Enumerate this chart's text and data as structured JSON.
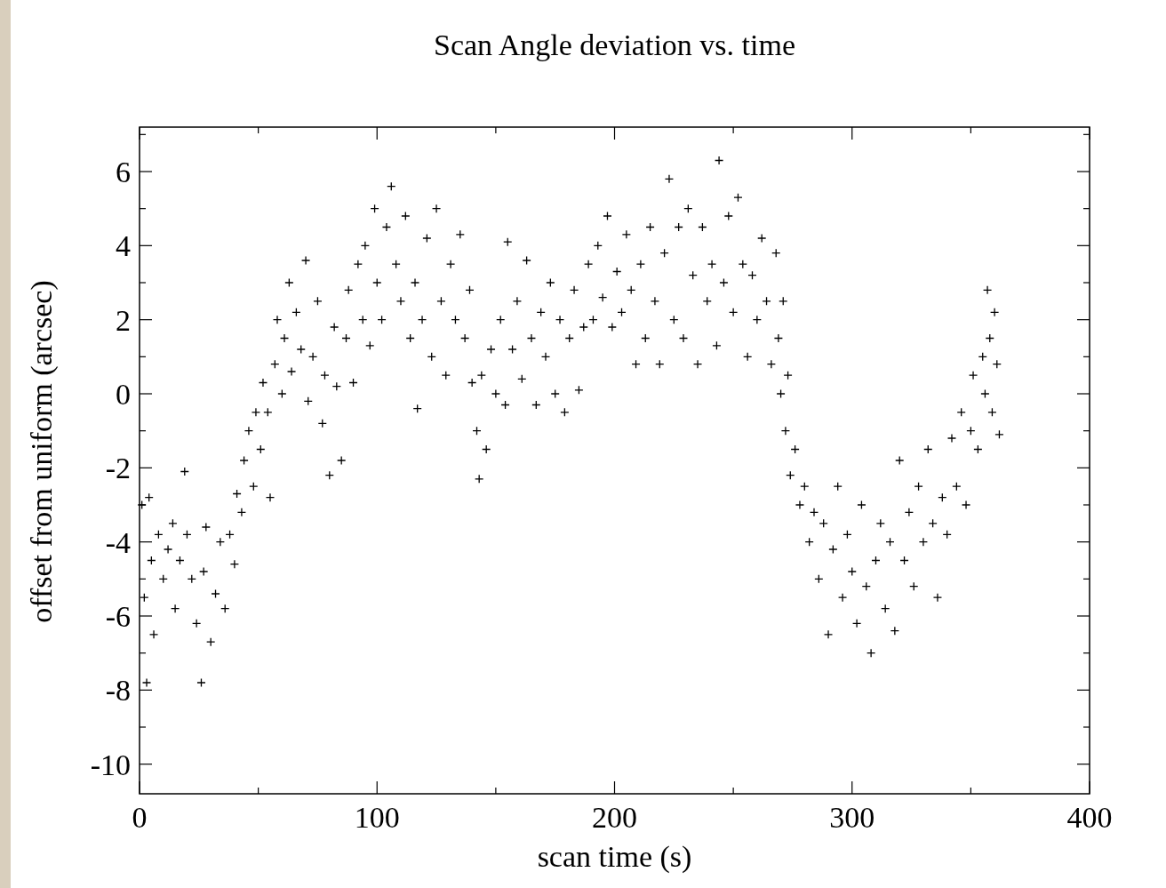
{
  "chart_data": {
    "type": "scatter",
    "title": "Scan Angle deviation vs. time",
    "xlabel": "scan time (s)",
    "ylabel": "offset from uniform (arcsec)",
    "marker": "cross",
    "grid": false,
    "xlim": [
      0,
      400
    ],
    "ylim": [
      -10.8,
      7.2
    ],
    "xticks": [
      0,
      {
        "value": 50,
        "label": null
      },
      100,
      {
        "value": 150,
        "label": null
      },
      200,
      {
        "value": 250,
        "label": null
      },
      300,
      {
        "value": 350,
        "label": null
      },
      400
    ],
    "yticks": [
      {
        "value": -10,
        "label": "-10"
      },
      {
        "value": -9,
        "label": null
      },
      {
        "value": -8,
        "label": "-8"
      },
      {
        "value": -7,
        "label": null
      },
      {
        "value": -6,
        "label": "-6"
      },
      {
        "value": -5,
        "label": null
      },
      {
        "value": -4,
        "label": "-4"
      },
      {
        "value": -3,
        "label": null
      },
      {
        "value": -2,
        "label": "-2"
      },
      {
        "value": -1,
        "label": null
      },
      0,
      {
        "value": 1,
        "label": null
      },
      2,
      {
        "value": 3,
        "label": null
      },
      4,
      {
        "value": 5,
        "label": null
      },
      6,
      {
        "value": 7,
        "label": null
      }
    ],
    "series": [
      {
        "color": "#000000",
        "x": [
          1,
          2,
          3,
          4,
          5,
          6,
          8,
          10,
          12,
          14,
          15,
          17,
          19,
          20,
          22,
          24,
          26,
          27,
          28,
          30,
          32,
          34,
          36,
          38,
          40,
          41,
          43,
          44,
          46,
          48,
          49,
          51,
          52,
          54,
          55,
          57,
          58,
          60,
          61,
          63,
          64,
          66,
          68,
          70,
          71,
          73,
          75,
          77,
          78,
          80,
          82,
          83,
          85,
          87,
          88,
          90,
          92,
          94,
          95,
          97,
          99,
          100,
          102,
          104,
          106,
          108,
          110,
          112,
          114,
          116,
          117,
          119,
          121,
          123,
          125,
          127,
          129,
          131,
          133,
          135,
          137,
          139,
          140,
          142,
          143,
          144,
          146,
          148,
          150,
          152,
          154,
          155,
          157,
          159,
          161,
          163,
          165,
          167,
          169,
          171,
          173,
          175,
          177,
          179,
          181,
          183,
          185,
          187,
          189,
          191,
          193,
          195,
          197,
          199,
          201,
          203,
          205,
          207,
          209,
          211,
          213,
          215,
          217,
          219,
          221,
          223,
          225,
          227,
          229,
          231,
          233,
          235,
          237,
          239,
          241,
          243,
          244,
          246,
          248,
          250,
          252,
          254,
          256,
          258,
          260,
          262,
          264,
          266,
          268,
          269,
          270,
          271,
          272,
          273,
          274,
          276,
          278,
          280,
          282,
          284,
          286,
          288,
          290,
          292,
          294,
          296,
          298,
          300,
          302,
          304,
          306,
          308,
          310,
          312,
          314,
          316,
          318,
          320,
          322,
          324,
          326,
          328,
          330,
          332,
          334,
          336,
          338,
          340,
          342,
          344,
          346,
          348,
          350,
          351,
          353,
          355,
          356,
          357,
          358,
          359,
          360,
          361,
          362
        ],
        "values": [
          -3.0,
          -5.5,
          -7.8,
          -2.8,
          -4.5,
          -6.5,
          -3.8,
          -5.0,
          -4.2,
          -3.5,
          -5.8,
          -4.5,
          -2.1,
          -3.8,
          -5.0,
          -6.2,
          -7.8,
          -4.8,
          -3.6,
          -6.7,
          -5.4,
          -4.0,
          -5.8,
          -3.8,
          -4.6,
          -2.7,
          -3.2,
          -1.8,
          -1.0,
          -2.5,
          -0.5,
          -1.5,
          0.3,
          -0.5,
          -2.8,
          0.8,
          2.0,
          0.0,
          1.5,
          3.0,
          0.6,
          2.2,
          1.2,
          3.6,
          -0.2,
          1.0,
          2.5,
          -0.8,
          0.5,
          -2.2,
          1.8,
          0.2,
          -1.8,
          1.5,
          2.8,
          0.3,
          3.5,
          2.0,
          4.0,
          1.3,
          5.0,
          3.0,
          2.0,
          4.5,
          5.6,
          3.5,
          2.5,
          4.8,
          1.5,
          3.0,
          -0.4,
          2.0,
          4.2,
          1.0,
          5.0,
          2.5,
          0.5,
          3.5,
          2.0,
          4.3,
          1.5,
          2.8,
          0.3,
          -1.0,
          -2.3,
          0.5,
          -1.5,
          1.2,
          0.0,
          2.0,
          -0.3,
          4.1,
          1.2,
          2.5,
          0.4,
          3.6,
          1.5,
          -0.3,
          2.2,
          1.0,
          3.0,
          0.0,
          2.0,
          -0.5,
          1.5,
          2.8,
          0.1,
          1.8,
          3.5,
          2.0,
          4.0,
          2.6,
          4.8,
          1.8,
          3.3,
          2.2,
          4.3,
          2.8,
          0.8,
          3.5,
          1.5,
          4.5,
          2.5,
          0.8,
          3.8,
          5.8,
          2.0,
          4.5,
          1.5,
          5.0,
          3.2,
          0.8,
          4.5,
          2.5,
          3.5,
          1.3,
          6.3,
          3.0,
          4.8,
          2.2,
          5.3,
          3.5,
          1.0,
          3.2,
          2.0,
          4.2,
          2.5,
          0.8,
          3.8,
          1.5,
          0.0,
          2.5,
          -1.0,
          0.5,
          -2.2,
          -1.5,
          -3.0,
          -2.5,
          -4.0,
          -3.2,
          -5.0,
          -3.5,
          -6.5,
          -4.2,
          -2.5,
          -5.5,
          -3.8,
          -4.8,
          -6.2,
          -3.0,
          -5.2,
          -7.0,
          -4.5,
          -3.5,
          -5.8,
          -4.0,
          -6.4,
          -1.8,
          -4.5,
          -3.2,
          -5.2,
          -2.5,
          -4.0,
          -1.5,
          -3.5,
          -5.5,
          -2.8,
          -3.8,
          -1.2,
          -2.5,
          -0.5,
          -3.0,
          -1.0,
          0.5,
          -1.5,
          1.0,
          0.0,
          2.8,
          1.5,
          -0.5,
          2.2,
          0.8,
          -1.1
        ]
      }
    ]
  }
}
